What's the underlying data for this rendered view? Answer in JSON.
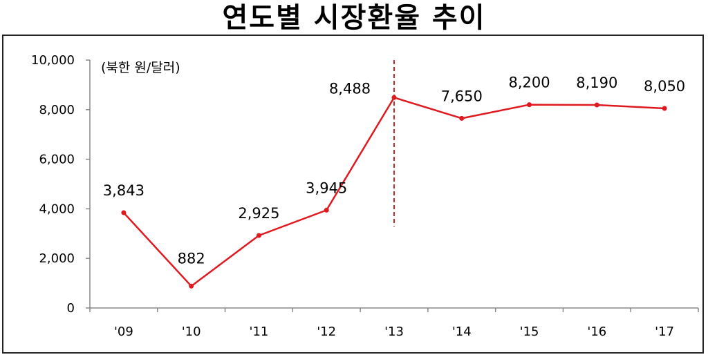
{
  "chart_data": {
    "type": "line",
    "title": "연도별 시장환율 추이",
    "unit_label": "(북한 원/달러)",
    "categories": [
      "'09",
      "'10",
      "'11",
      "'12",
      "'13",
      "'14",
      "'15",
      "'16",
      "'17"
    ],
    "series": [
      {
        "values": [
          3843,
          882,
          2925,
          3945,
          8488,
          7650,
          8200,
          8190,
          8050
        ]
      }
    ],
    "data_labels": [
      "3,843",
      "882",
      "2,925",
      "3,945",
      "8,488",
      "7,650",
      "8,200",
      "8,190",
      "8,050"
    ],
    "ylim": [
      0,
      10000
    ],
    "yticks": [
      0,
      2000,
      4000,
      6000,
      8000,
      10000
    ],
    "ytick_labels": [
      "0",
      "2,000",
      "4,000",
      "6,000",
      "8,000",
      "10,000"
    ],
    "grid": false,
    "marker_line_at": "'13"
  },
  "colors": {
    "series": "#e0191f",
    "marker_line": "#c62828",
    "axis": "#888888"
  }
}
